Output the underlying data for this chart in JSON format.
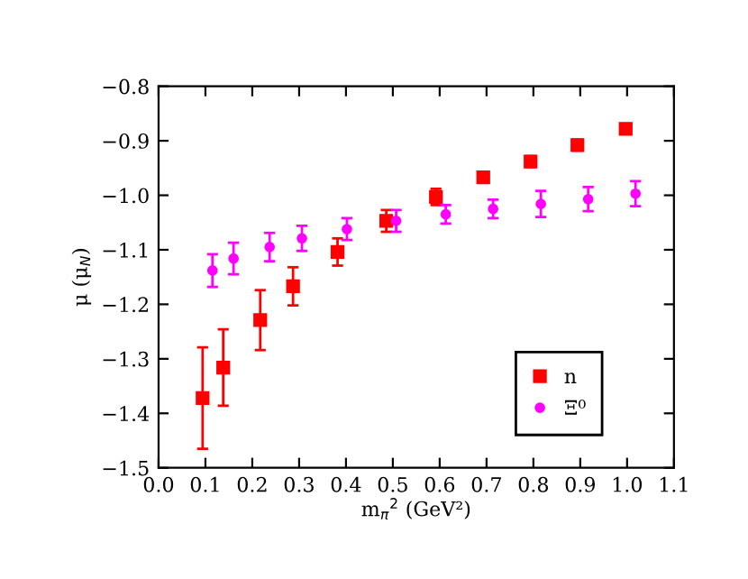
{
  "chart_data": {
    "type": "scatter",
    "xlabel": "m$_{π}$$^{2}$ (GeV²)",
    "ylabel": "μ (μ$_{N}$)",
    "xlim": [
      0.0,
      1.1
    ],
    "xticks": [
      {
        "value": 0.0,
        "label": "0.0"
      },
      0.1,
      0.2,
      0.3,
      0.4,
      0.5,
      0.6,
      0.7,
      0.8,
      0.9,
      {
        "value": 1.0,
        "label": "1.0"
      },
      1.1
    ],
    "ylim": [
      -1.5,
      -0.8
    ],
    "yticks": [
      {
        "value": -1.5,
        "label": "−1.5"
      },
      {
        "value": -1.4,
        "label": "−1.4"
      },
      {
        "value": -1.3,
        "label": "−1.3"
      },
      {
        "value": -1.2,
        "label": "−1.2"
      },
      {
        "value": -1.1,
        "label": "−1.1"
      },
      {
        "value": -1.0,
        "label": "−1.0"
      },
      {
        "value": -0.9,
        "label": "−0.9"
      },
      {
        "value": -0.8,
        "label": "−0.8"
      }
    ],
    "grid": false,
    "legend": "bottom right",
    "series": [
      {
        "name": "n",
        "color": "#ff0000",
        "marker": "square",
        "x": [
          0.094,
          0.138,
          0.217,
          0.287,
          0.382,
          0.486,
          0.592,
          0.693,
          0.794,
          0.894,
          0.997
        ],
        "values": [
          -1.372,
          -1.316,
          -1.229,
          -1.167,
          -1.104,
          -1.047,
          -1.003,
          -0.967,
          -0.938,
          -0.908,
          -0.878
        ],
        "errors": [
          0.093,
          0.07,
          0.055,
          0.035,
          0.025,
          0.02,
          0.015,
          0.01,
          0.01,
          0.01,
          0.008
        ]
      },
      {
        "name": "Ξ⁰",
        "color": "#ff00ff",
        "marker": "circle",
        "x": [
          0.115,
          0.16,
          0.237,
          0.306,
          0.402,
          0.507,
          0.613,
          0.714,
          0.816,
          0.917,
          1.018
        ],
        "values": [
          -1.138,
          -1.116,
          -1.095,
          -1.079,
          -1.062,
          -1.047,
          -1.035,
          -1.025,
          -1.016,
          -1.007,
          -0.997
        ],
        "errors": [
          0.03,
          0.029,
          0.026,
          0.023,
          0.02,
          0.02,
          0.017,
          0.017,
          0.024,
          0.022,
          0.023
        ]
      }
    ]
  }
}
